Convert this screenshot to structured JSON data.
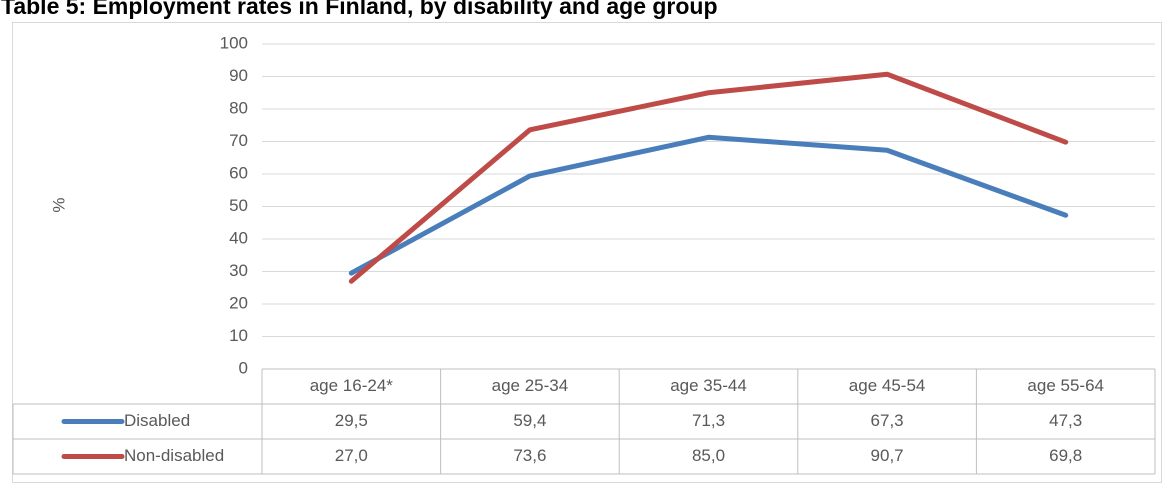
{
  "chart_data": {
    "type": "line",
    "title": "Table 5: Employment rates in Finland, by disability and age group",
    "y_label": "%",
    "categories": [
      "age 16-24*",
      "age 25-34",
      "age 35-44",
      "age 45-54",
      "age 55-64"
    ],
    "series": [
      {
        "name": "Disabled",
        "color": "#4a7ebb",
        "values": [
          29.5,
          59.4,
          71.3,
          67.3,
          47.3
        ],
        "value_labels": [
          "29,5",
          "59,4",
          "71,3",
          "67,3",
          "47,3"
        ]
      },
      {
        "name": "Non-disabled",
        "color": "#be4b48",
        "values": [
          27.0,
          73.6,
          85.0,
          90.7,
          69.8
        ],
        "value_labels": [
          "27,0",
          "73,6",
          "85,0",
          "90,7",
          "69,8"
        ]
      }
    ],
    "ylim": [
      0,
      100
    ],
    "yticks": [
      0,
      10,
      20,
      30,
      40,
      50,
      60,
      70,
      80,
      90,
      100
    ],
    "grid": true
  }
}
